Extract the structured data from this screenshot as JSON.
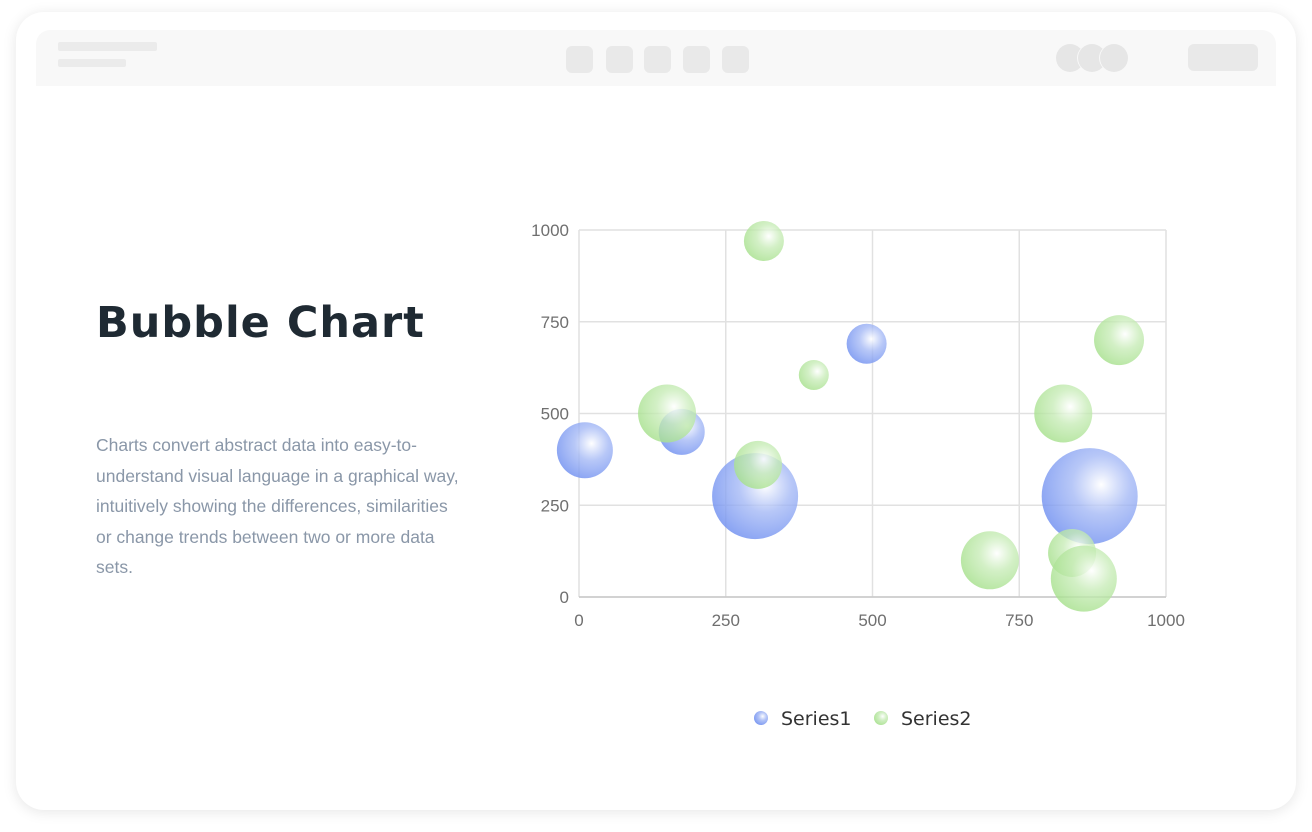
{
  "page": {
    "title": "Bubble Chart",
    "description": "Charts convert abstract data into easy-to-understand visual language in a graphical way, intuitively showing the differences, similarities or change trends between two or more data sets."
  },
  "colors": {
    "series1": "#6f8ff0",
    "series2": "#a6e08c",
    "grid": "#e1e1e1",
    "axis": "#c8c8c8"
  },
  "chart_data": {
    "type": "scatter",
    "title": "",
    "xlabel": "",
    "ylabel": "",
    "xlim": [
      0,
      1000
    ],
    "ylim": [
      0,
      1000
    ],
    "x_ticks": [
      0,
      250,
      500,
      750,
      1000
    ],
    "y_ticks": [
      0,
      250,
      500,
      750,
      1000
    ],
    "grid": true,
    "legend_position": "bottom",
    "size_field": "r",
    "series": [
      {
        "name": "Series1",
        "color": "#6f8ff0",
        "points": [
          {
            "x": 10,
            "y": 400,
            "r": 28
          },
          {
            "x": 175,
            "y": 450,
            "r": 23
          },
          {
            "x": 300,
            "y": 275,
            "r": 43
          },
          {
            "x": 490,
            "y": 690,
            "r": 20
          },
          {
            "x": 870,
            "y": 275,
            "r": 48
          }
        ]
      },
      {
        "name": "Series2",
        "color": "#a6e08c",
        "points": [
          {
            "x": 150,
            "y": 500,
            "r": 29
          },
          {
            "x": 315,
            "y": 970,
            "r": 20
          },
          {
            "x": 305,
            "y": 360,
            "r": 24
          },
          {
            "x": 400,
            "y": 605,
            "r": 15
          },
          {
            "x": 700,
            "y": 100,
            "r": 29
          },
          {
            "x": 825,
            "y": 500,
            "r": 29
          },
          {
            "x": 840,
            "y": 120,
            "r": 24
          },
          {
            "x": 860,
            "y": 50,
            "r": 33
          },
          {
            "x": 920,
            "y": 700,
            "r": 25
          }
        ]
      }
    ]
  }
}
